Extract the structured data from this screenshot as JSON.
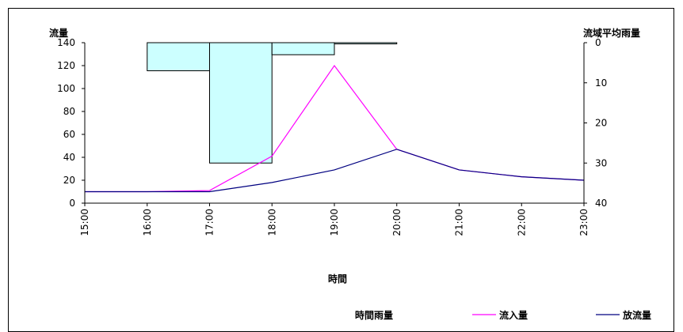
{
  "chart_data": {
    "type": "line",
    "xlabel": "時間",
    "ylabel": "流量",
    "y2label": "流域平均雨量",
    "categories": [
      "15:00",
      "16:00",
      "17:00",
      "18:00",
      "19:00",
      "20:00",
      "21:00",
      "22:00",
      "23:00"
    ],
    "ylim": [
      0,
      140
    ],
    "yticks": [
      0,
      20,
      40,
      60,
      80,
      100,
      120,
      140
    ],
    "y2lim": [
      0,
      40
    ],
    "y2ticks": [
      0,
      10,
      20,
      30,
      40
    ],
    "y2_inverted": true,
    "grid": false,
    "legend_position": "bottom",
    "rain": {
      "name": "時間雨量",
      "type": "bar",
      "axis": "right",
      "color": "#ccffff",
      "intervals": [
        {
          "start": "16:00",
          "end": "17:00",
          "value": 7
        },
        {
          "start": "17:00",
          "end": "18:00",
          "value": 30
        },
        {
          "start": "18:00",
          "end": "19:00",
          "value": 3
        },
        {
          "start": "19:00",
          "end": "20:00",
          "value": 0.3
        }
      ]
    },
    "series": [
      {
        "name": "流入量",
        "color": "#ff00ff",
        "values": [
          10,
          10,
          11,
          41,
          120,
          47,
          29,
          23,
          20
        ]
      },
      {
        "name": "放流量",
        "color": "#000080",
        "values": [
          10,
          10,
          10,
          18,
          29,
          47,
          29,
          23,
          20
        ]
      }
    ]
  }
}
